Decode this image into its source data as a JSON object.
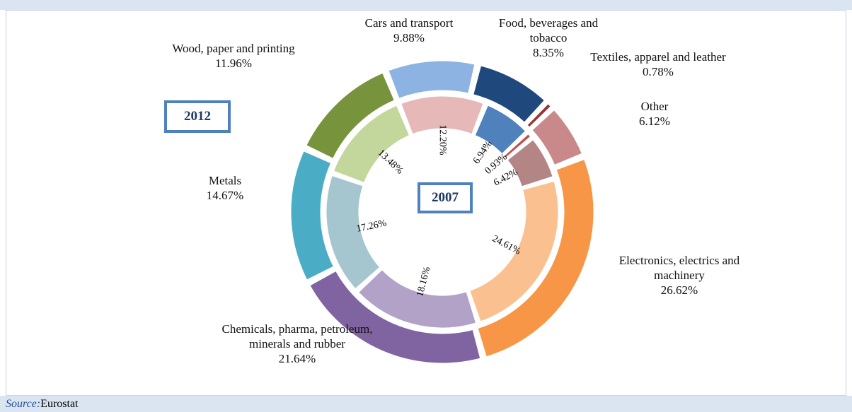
{
  "chart_data": {
    "type": "donut",
    "categories": [
      "Cars and transport",
      "Food, beverages and tobacco",
      "Textiles, apparel and leather",
      "Other",
      "Electronics, electrics and machinery",
      "Chemicals, pharma, petroleum, minerals and rubber",
      "Metals",
      "Wood, paper and printing"
    ],
    "series": [
      {
        "name": "2012",
        "values": [
          9.88,
          8.35,
          0.78,
          6.12,
          26.62,
          21.64,
          14.67,
          11.96
        ],
        "value_labels": [
          "9.88%",
          "8.35%",
          "0.78%",
          "6.12%",
          "26.62%",
          "21.64%",
          "14.67%",
          "11.96%"
        ],
        "colors": [
          "#8db3e2",
          "#1f497d",
          "#953735",
          "#c9898a",
          "#f79646",
          "#8064a2",
          "#4bacc6",
          "#77933c"
        ]
      },
      {
        "name": "2007",
        "values": [
          12.2,
          6.94,
          0.93,
          6.42,
          24.61,
          18.16,
          17.26,
          13.48
        ],
        "value_labels": [
          "12.20%",
          "6.94%",
          "0.93%",
          "6.42%",
          "24.61%",
          "18.16%",
          "17.26%",
          "13.48%"
        ],
        "colors": [
          "#e6b9b8",
          "#4f81bd",
          "#c0504d",
          "#b48585",
          "#fac090",
          "#b3a2c7",
          "#a5c6cf",
          "#c3d69b"
        ]
      }
    ]
  },
  "source": {
    "label": "Source:",
    "text": "Eurostat"
  }
}
